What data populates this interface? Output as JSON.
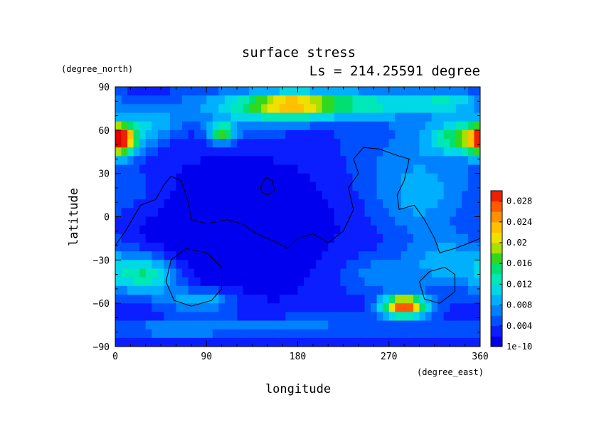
{
  "chart_data": {
    "type": "heatmap",
    "title": "surface stress",
    "subtitle": "Ls = 214.25591 degree",
    "xlabel": "longitude",
    "ylabel": "latitude",
    "x_unit": "(degree_east)",
    "y_unit": "(degree_north)",
    "xlim": [
      0,
      360
    ],
    "ylim": [
      -90,
      90
    ],
    "x_ticks": [
      "0",
      "90",
      "180",
      "270",
      "360"
    ],
    "y_ticks": [
      "90",
      "60",
      "30",
      "0",
      "−30",
      "−60",
      "−90"
    ],
    "x_tick_values": [
      0,
      90,
      180,
      270,
      360
    ],
    "y_tick_values": [
      90,
      60,
      30,
      0,
      -30,
      -60,
      -90
    ],
    "colorbar": {
      "min": 0,
      "max": 0.03,
      "bottom_label": "1e-10",
      "tick_labels": [
        "0.004",
        "0.008",
        "0.012",
        "0.016",
        "0.02",
        "0.024",
        "0.028"
      ],
      "tick_values": [
        0.004,
        0.008,
        0.012,
        0.016,
        0.02,
        0.024,
        0.028
      ],
      "levels": [
        {
          "value": 0.0,
          "color": "#0000ee"
        },
        {
          "value": 0.002,
          "color": "#0a1eff"
        },
        {
          "value": 0.004,
          "color": "#0050ff"
        },
        {
          "value": 0.006,
          "color": "#0082ff"
        },
        {
          "value": 0.008,
          "color": "#00b0ff"
        },
        {
          "value": 0.01,
          "color": "#00d8e8"
        },
        {
          "value": 0.012,
          "color": "#00e8b8"
        },
        {
          "value": 0.014,
          "color": "#00e070"
        },
        {
          "value": 0.016,
          "color": "#30d820"
        },
        {
          "value": 0.018,
          "color": "#a8e000"
        },
        {
          "value": 0.02,
          "color": "#f0e000"
        },
        {
          "value": 0.022,
          "color": "#ffc000"
        },
        {
          "value": 0.024,
          "color": "#ff9000"
        },
        {
          "value": 0.026,
          "color": "#ff5a00"
        },
        {
          "value": 0.028,
          "color": "#f02000"
        },
        {
          "value": 0.03,
          "color": "#e00000"
        }
      ]
    },
    "background_value": 0.003,
    "features": [
      {
        "lon": 200,
        "lat": 78,
        "slon": 75,
        "slat": 7,
        "amp": 0.012
      },
      {
        "lon": 175,
        "lat": 78,
        "slon": 22,
        "slat": 5,
        "amp": 0.008
      },
      {
        "lon": 145,
        "lat": 72,
        "slon": 40,
        "slat": 9,
        "amp": 0.005
      },
      {
        "lon": 330,
        "lat": 80,
        "slon": 22,
        "slat": 5,
        "amp": 0.006
      },
      {
        "lon": 5,
        "lat": 53,
        "slon": 10,
        "slat": 7,
        "amp": 0.018
      },
      {
        "lon": 350,
        "lat": 55,
        "slon": 25,
        "slat": 8,
        "amp": 0.013
      },
      {
        "lon": 105,
        "lat": 58,
        "slon": 10,
        "slat": 5,
        "amp": 0.013
      },
      {
        "lon": 40,
        "lat": 65,
        "slon": 20,
        "slat": 8,
        "amp": 0.005
      },
      {
        "lon": 300,
        "lat": 40,
        "slon": 50,
        "slat": 25,
        "amp": 0.004
      },
      {
        "lon": 300,
        "lat": 10,
        "slon": 30,
        "slat": 15,
        "amp": 0.004
      },
      {
        "lon": 25,
        "lat": 15,
        "slon": 25,
        "slat": 12,
        "amp": 0.002
      },
      {
        "lon": 30,
        "lat": -40,
        "slon": 25,
        "slat": 10,
        "amp": 0.012
      },
      {
        "lon": 85,
        "lat": -58,
        "slon": 25,
        "slat": 6,
        "amp": 0.008
      },
      {
        "lon": 285,
        "lat": -62,
        "slon": 15,
        "slat": 5,
        "amp": 0.025
      },
      {
        "lon": 330,
        "lat": -30,
        "slon": 30,
        "slat": 15,
        "amp": 0.006
      },
      {
        "lon": 260,
        "lat": -40,
        "slon": 30,
        "slat": 10,
        "amp": 0.004
      },
      {
        "lon": 60,
        "lat": -78,
        "slon": 60,
        "slat": 5,
        "amp": 0.004
      },
      {
        "lon": 200,
        "lat": -75,
        "slon": 80,
        "slat": 5,
        "amp": 0.003
      },
      {
        "lon": 120,
        "lat": 5,
        "slon": 70,
        "slat": 25,
        "amp": -0.003
      },
      {
        "lon": 100,
        "lat": -30,
        "slon": 60,
        "slat": 25,
        "amp": -0.003
      }
    ],
    "contours": [
      {
        "closed": false,
        "points": [
          [
            0,
            -20
          ],
          [
            10,
            -10
          ],
          [
            25,
            8
          ],
          [
            40,
            12
          ],
          [
            48,
            22
          ],
          [
            55,
            28
          ],
          [
            65,
            25
          ],
          [
            72,
            10
          ],
          [
            75,
            -2
          ],
          [
            90,
            -5
          ],
          [
            110,
            -2
          ],
          [
            125,
            -5
          ],
          [
            140,
            -12
          ],
          [
            160,
            -18
          ],
          [
            170,
            -22
          ],
          [
            180,
            -15
          ],
          [
            195,
            -12
          ],
          [
            210,
            -18
          ],
          [
            225,
            -10
          ],
          [
            235,
            5
          ],
          [
            230,
            20
          ],
          [
            240,
            30
          ],
          [
            235,
            40
          ],
          [
            245,
            48
          ],
          [
            260,
            47
          ],
          [
            280,
            42
          ],
          [
            290,
            40
          ],
          [
            285,
            25
          ],
          [
            278,
            15
          ],
          [
            280,
            5
          ],
          [
            295,
            8
          ],
          [
            305,
            -2
          ],
          [
            315,
            -15
          ],
          [
            320,
            -25
          ],
          [
            335,
            -22
          ],
          [
            350,
            -18
          ],
          [
            360,
            -15
          ]
        ]
      },
      {
        "closed": true,
        "points": [
          [
            143,
            20
          ],
          [
            148,
            27
          ],
          [
            155,
            25
          ],
          [
            157,
            18
          ],
          [
            150,
            15
          ],
          [
            145,
            17
          ]
        ]
      },
      {
        "closed": true,
        "points": [
          [
            55,
            -30
          ],
          [
            70,
            -22
          ],
          [
            90,
            -25
          ],
          [
            105,
            -35
          ],
          [
            105,
            -50
          ],
          [
            95,
            -58
          ],
          [
            75,
            -62
          ],
          [
            58,
            -58
          ],
          [
            50,
            -45
          ]
        ]
      },
      {
        "closed": true,
        "points": [
          [
            300,
            -45
          ],
          [
            310,
            -38
          ],
          [
            325,
            -35
          ],
          [
            335,
            -40
          ],
          [
            335,
            -52
          ],
          [
            320,
            -60
          ],
          [
            305,
            -57
          ]
        ]
      }
    ]
  }
}
